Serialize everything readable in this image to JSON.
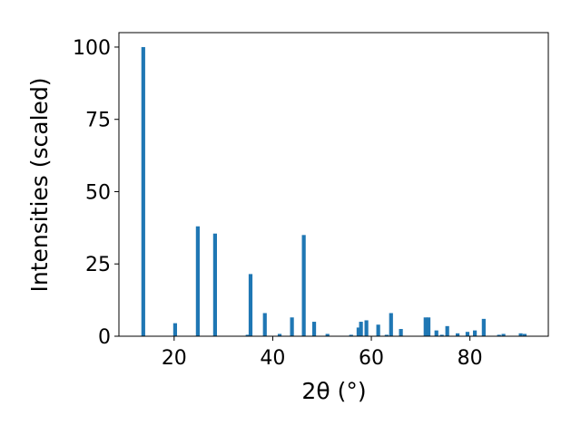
{
  "chart_data": {
    "type": "bar",
    "xlabel": "2θ (°)",
    "ylabel": "Intensities (scaled)",
    "color": "#1f77b4",
    "x": [
      13.74,
      20.2,
      24.8,
      28.3,
      34.9,
      35.5,
      38.4,
      41.4,
      43.9,
      46.3,
      48.4,
      51.1,
      55.9,
      57.4,
      57.9,
      59.0,
      61.4,
      63.1,
      64.0,
      66.0,
      71.0,
      71.6,
      73.2,
      74.3,
      75.4,
      77.5,
      79.5,
      81.0,
      82.8,
      85.9,
      86.8,
      90.3,
      91.1
    ],
    "values": [
      100,
      4.5,
      38,
      35.5,
      0.5,
      21.5,
      8,
      0.8,
      6.5,
      35,
      5,
      0.8,
      0.5,
      3,
      5,
      5.5,
      4,
      0.5,
      8,
      2.5,
      6.5,
      6.5,
      2,
      0.5,
      3.5,
      1,
      1.5,
      2,
      6,
      0.5,
      0.8,
      1,
      0.8
    ],
    "xlim": [
      8.8,
      95.9
    ],
    "ylim": [
      0,
      105
    ],
    "xticks": [
      20,
      40,
      60,
      80
    ],
    "yticks": [
      0,
      25,
      50,
      75,
      100
    ]
  }
}
